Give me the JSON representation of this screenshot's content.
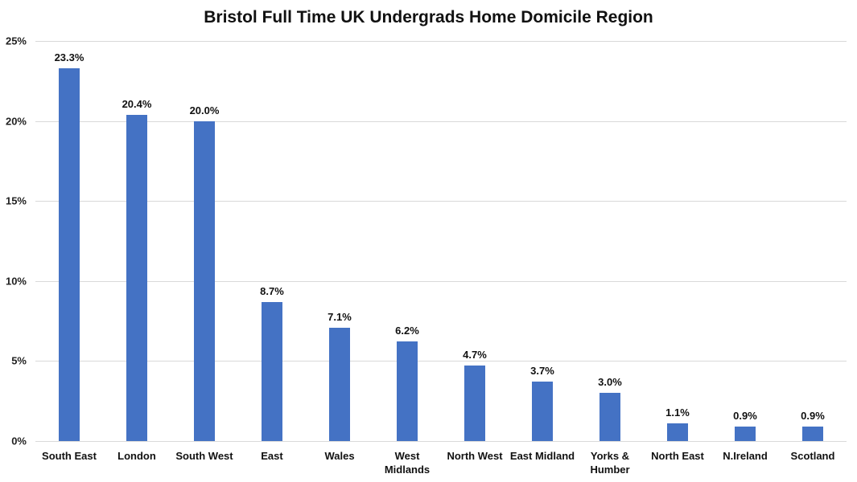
{
  "chart_data": {
    "type": "bar",
    "title": "Bristol Full Time UK Undergrads Home Domicile Region",
    "xlabel": "",
    "ylabel": "",
    "ylim": [
      0,
      25
    ],
    "yticks": [
      "0%",
      "5%",
      "10%",
      "15%",
      "20%",
      "25%"
    ],
    "grid": true,
    "legend": null,
    "bar_color": "#4472c4",
    "categories": [
      "South East",
      "London",
      "South West",
      "East",
      "Wales",
      "West Midlands",
      "North West",
      "East Midland",
      "Yorks & Humber",
      "North East",
      "N.Ireland",
      "Scotland"
    ],
    "values": [
      23.3,
      20.4,
      20.0,
      8.7,
      7.1,
      6.2,
      4.7,
      3.7,
      3.0,
      1.1,
      0.9,
      0.9
    ],
    "data_labels": [
      "23.3%",
      "20.4%",
      "20.0%",
      "8.7%",
      "7.1%",
      "6.2%",
      "4.7%",
      "3.7%",
      "3.0%",
      "1.1%",
      "0.9%",
      "0.9%"
    ]
  }
}
